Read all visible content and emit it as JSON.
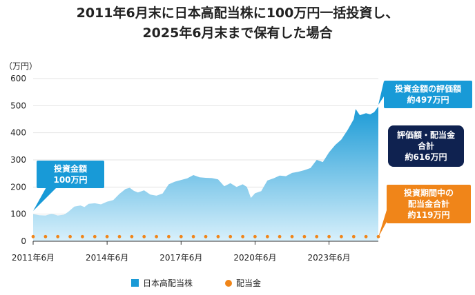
{
  "title_line1": "2011年6月末に日本高配当株に100万円一括投資し、",
  "title_line2": "2025年6月末まで保有した場合",
  "unit_label": "（万円）",
  "colors": {
    "area_top": "#1a9ad6",
    "area_bottom": "#d8f0fb",
    "dividend": "#f08519",
    "callout_blue": "#189ad7",
    "callout_navy": "#0f2250",
    "callout_orange": "#f08519"
  },
  "callouts": {
    "investment_line1": "投資金額",
    "investment_line2": "100万円",
    "valuation_line1": "投資金額の評価額",
    "valuation_line2": "約497万円",
    "total_line1": "評価額・配当金",
    "total_line2": "合計",
    "total_line3": "約616万円",
    "dividend_line1": "投資期間中の",
    "dividend_line2": "配当金合計",
    "dividend_line3": "約119万円"
  },
  "chart_data": {
    "type": "area",
    "ylim": [
      0,
      600
    ],
    "yticks": [
      "0",
      "100",
      "200",
      "300",
      "400",
      "500",
      "600"
    ],
    "xlim": [
      2011.5,
      2025.5
    ],
    "xticks": [
      {
        "x": 2011.5,
        "label": "2011年6月"
      },
      {
        "x": 2014.5,
        "label": "2014年6月"
      },
      {
        "x": 2017.5,
        "label": "2017年6月"
      },
      {
        "x": 2020.5,
        "label": "2020年6月"
      },
      {
        "x": 2023.5,
        "label": "2023年6月"
      }
    ],
    "series": [
      {
        "name": "日本高配当株",
        "x": [
          2011.5,
          2011.75,
          2012.0,
          2012.25,
          2012.5,
          2012.75,
          2012.92,
          2013.17,
          2013.42,
          2013.58,
          2013.75,
          2014.0,
          2014.25,
          2014.5,
          2014.75,
          2015.0,
          2015.25,
          2015.42,
          2015.58,
          2015.75,
          2016.0,
          2016.25,
          2016.5,
          2016.75,
          2017.0,
          2017.25,
          2017.5,
          2017.75,
          2018.0,
          2018.25,
          2018.5,
          2018.75,
          2019.0,
          2019.25,
          2019.5,
          2019.75,
          2020.0,
          2020.17,
          2020.33,
          2020.5,
          2020.75,
          2021.0,
          2021.25,
          2021.5,
          2021.75,
          2022.0,
          2022.25,
          2022.5,
          2022.75,
          2023.0,
          2023.25,
          2023.5,
          2023.75,
          2024.0,
          2024.25,
          2024.5,
          2024.58,
          2024.75,
          2025.0,
          2025.17,
          2025.33,
          2025.5
        ],
        "y": [
          100,
          96,
          95,
          101,
          95,
          98,
          108,
          128,
          132,
          126,
          138,
          140,
          136,
          146,
          152,
          175,
          193,
          197,
          186,
          180,
          188,
          172,
          168,
          176,
          210,
          220,
          226,
          232,
          244,
          236,
          234,
          233,
          228,
          203,
          214,
          200,
          210,
          200,
          160,
          177,
          185,
          224,
          232,
          242,
          240,
          252,
          256,
          262,
          270,
          300,
          292,
          328,
          355,
          375,
          410,
          450,
          488,
          465,
          472,
          468,
          476,
          497
        ]
      },
      {
        "name": "配当金",
        "type": "scatter",
        "x": [
          2011.5,
          2012.0,
          2012.5,
          2013.0,
          2013.5,
          2014.0,
          2014.5,
          2015.0,
          2015.5,
          2016.0,
          2016.5,
          2017.0,
          2017.5,
          2018.0,
          2018.5,
          2019.0,
          2019.5,
          2020.0,
          2020.5,
          2021.0,
          2021.5,
          2022.0,
          2022.5,
          2023.0,
          2023.5,
          2024.0,
          2024.5,
          2025.0,
          2025.5
        ],
        "y": [
          17,
          17,
          17,
          17,
          17,
          17,
          17,
          17,
          17,
          17,
          17,
          17,
          17,
          17,
          17,
          17,
          17,
          17,
          17,
          17,
          17,
          17,
          17,
          17,
          17,
          17,
          17,
          17,
          17
        ]
      }
    ]
  }
}
